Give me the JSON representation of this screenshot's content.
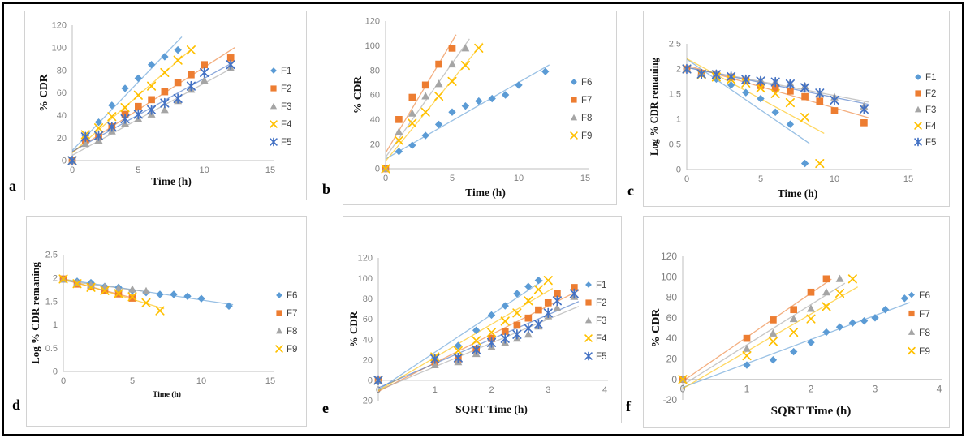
{
  "panels": [
    {
      "letter": "a"
    },
    {
      "letter": "b"
    },
    {
      "letter": "c"
    },
    {
      "letter": "d"
    },
    {
      "letter": "e"
    },
    {
      "letter": "f"
    }
  ],
  "style": {
    "axis_color": "#BFBFBF",
    "tick_label_color": "#7F7F7F",
    "axis_title_color": "#111111",
    "legend_text_color": "#404040",
    "panel_border_color": "#d2d2d2",
    "figure_border_color": "#000000",
    "series_palette": {
      "F1": "#5B9BD5",
      "F2": "#ED7D31",
      "F3": "#A5A5A5",
      "F4": "#FFC000",
      "F5": "#4472C4",
      "F6": "#5B9BD5",
      "F7": "#ED7D31",
      "F8": "#A5A5A5",
      "F9": "#FFC000"
    }
  },
  "chart_data": [
    {
      "panel": "a",
      "type": "scatter",
      "xlabel": "Time (h)",
      "ylabel": "% CDR",
      "xlim": [
        0,
        15
      ],
      "xticks": [
        0,
        5,
        10,
        15
      ],
      "ylim": [
        0,
        120
      ],
      "yticks": [
        0,
        20,
        40,
        60,
        80,
        100,
        120
      ],
      "grid": false,
      "legend_position": "right",
      "series": [
        {
          "name": "F1",
          "color": "#5B9BD5",
          "marker": "diamond",
          "trendline": true,
          "x": [
            0,
            1,
            2,
            3,
            4,
            5,
            6,
            7,
            8
          ],
          "y": [
            0,
            22,
            34,
            49,
            64,
            73,
            85,
            92,
            98
          ]
        },
        {
          "name": "F2",
          "color": "#ED7D31",
          "marker": "square",
          "trendline": true,
          "x": [
            0,
            1,
            2,
            3,
            4,
            5,
            6,
            7,
            8,
            9,
            10,
            12
          ],
          "y": [
            0,
            18,
            21,
            30,
            41,
            48,
            54,
            61,
            69,
            76,
            85,
            91
          ]
        },
        {
          "name": "F3",
          "color": "#A5A5A5",
          "marker": "triangle",
          "trendline": true,
          "x": [
            0,
            1,
            2,
            3,
            4,
            5,
            6,
            7,
            8,
            9,
            10,
            12
          ],
          "y": [
            0,
            15,
            18,
            26,
            33,
            37,
            41,
            45,
            53,
            63,
            71,
            82
          ]
        },
        {
          "name": "F4",
          "color": "#FFC000",
          "marker": "x",
          "trendline": true,
          "x": [
            0,
            1,
            2,
            3,
            4,
            5,
            6,
            7,
            8,
            9
          ],
          "y": [
            0,
            23,
            29,
            39,
            47,
            58,
            66,
            78,
            89,
            98
          ]
        },
        {
          "name": "F5",
          "color": "#4472C4",
          "marker": "asterisk",
          "trendline": true,
          "x": [
            0,
            1,
            2,
            3,
            4,
            5,
            6,
            7,
            8,
            9,
            10,
            12
          ],
          "y": [
            0,
            21,
            22,
            30,
            37,
            41,
            45,
            51,
            55,
            66,
            78,
            85
          ]
        }
      ]
    },
    {
      "panel": "b",
      "type": "scatter",
      "xlabel": "Time (h)",
      "ylabel": "% CDR",
      "xlim": [
        0,
        15
      ],
      "xticks": [
        0,
        5,
        10,
        15
      ],
      "ylim": [
        0,
        120
      ],
      "yticks": [
        0,
        20,
        40,
        60,
        80,
        100,
        120
      ],
      "grid": false,
      "legend_position": "right",
      "series": [
        {
          "name": "F6",
          "color": "#5B9BD5",
          "marker": "diamond",
          "trendline": true,
          "x": [
            0,
            1,
            2,
            3,
            4,
            5,
            6,
            7,
            8,
            9,
            10,
            12
          ],
          "y": [
            0,
            14,
            19,
            27,
            36,
            46,
            51,
            55,
            57,
            60,
            68,
            79
          ]
        },
        {
          "name": "F7",
          "color": "#ED7D31",
          "marker": "square",
          "trendline": true,
          "x": [
            0,
            1,
            2,
            3,
            4,
            5
          ],
          "y": [
            0,
            40,
            58,
            68,
            85,
            98
          ]
        },
        {
          "name": "F8",
          "color": "#A5A5A5",
          "marker": "triangle",
          "trendline": true,
          "x": [
            0,
            1,
            2,
            3,
            4,
            5,
            6
          ],
          "y": [
            0,
            30,
            45,
            59,
            69,
            85,
            98
          ]
        },
        {
          "name": "F9",
          "color": "#FFC000",
          "marker": "x",
          "trendline": true,
          "x": [
            0,
            1,
            2,
            3,
            4,
            5,
            6,
            7
          ],
          "y": [
            0,
            23,
            37,
            46,
            59,
            71,
            84,
            98
          ]
        }
      ]
    },
    {
      "panel": "c",
      "type": "scatter",
      "xlabel": "Time (h)",
      "ylabel": "Log % CDR remaning",
      "xlim": [
        0,
        15
      ],
      "xticks": [
        0,
        5,
        10,
        15
      ],
      "ylim": [
        0,
        2.5
      ],
      "yticks": [
        0,
        0.5,
        1,
        1.5,
        2,
        2.5
      ],
      "grid": false,
      "legend_position": "right",
      "series": [
        {
          "name": "F1",
          "color": "#5B9BD5",
          "marker": "diamond",
          "trendline": true,
          "x": [
            0,
            1,
            2,
            3,
            4,
            5,
            6,
            7,
            8
          ],
          "y": [
            2,
            1.9,
            1.8,
            1.68,
            1.53,
            1.41,
            1.14,
            0.9,
            0.12
          ]
        },
        {
          "name": "F2",
          "color": "#ED7D31",
          "marker": "square",
          "trendline": true,
          "x": [
            0,
            1,
            2,
            3,
            4,
            5,
            6,
            7,
            8,
            9,
            10,
            12
          ],
          "y": [
            2,
            1.91,
            1.9,
            1.84,
            1.77,
            1.67,
            1.62,
            1.56,
            1.45,
            1.36,
            1.17,
            0.93
          ]
        },
        {
          "name": "F3",
          "color": "#A5A5A5",
          "marker": "triangle",
          "trendline": true,
          "x": [
            0,
            1,
            2,
            3,
            4,
            5,
            6,
            7,
            8,
            9,
            10,
            12
          ],
          "y": [
            2,
            1.92,
            1.91,
            1.86,
            1.81,
            1.78,
            1.75,
            1.72,
            1.66,
            1.52,
            1.44,
            1.26
          ]
        },
        {
          "name": "F4",
          "color": "#FFC000",
          "marker": "x",
          "trendline": true,
          "x": [
            0,
            1,
            2,
            3,
            4,
            5,
            6,
            7,
            8,
            9
          ],
          "y": [
            2,
            1.89,
            1.84,
            1.79,
            1.72,
            1.62,
            1.51,
            1.33,
            1.04,
            0.12
          ]
        },
        {
          "name": "F5",
          "color": "#4472C4",
          "marker": "asterisk",
          "trendline": true,
          "x": [
            0,
            1,
            2,
            3,
            4,
            5,
            6,
            7,
            8,
            9,
            10,
            12
          ],
          "y": [
            2,
            1.9,
            1.89,
            1.85,
            1.79,
            1.76,
            1.74,
            1.7,
            1.63,
            1.52,
            1.38,
            1.2
          ]
        }
      ]
    },
    {
      "panel": "d",
      "type": "scatter",
      "xlabel": "Time (h)",
      "ylabel": "Log % CDR remaning",
      "xlim": [
        0,
        15
      ],
      "xticks": [
        0,
        5,
        10,
        15
      ],
      "ylim": [
        0,
        2.5
      ],
      "yticks": [
        0,
        0.5,
        1,
        1.5,
        2,
        2.5
      ],
      "grid": false,
      "legend_position": "right",
      "series": [
        {
          "name": "F6",
          "color": "#5B9BD5",
          "marker": "diamond",
          "trendline": true,
          "x": [
            0,
            1,
            2,
            3,
            4,
            5,
            6,
            7,
            8,
            9,
            10,
            12
          ],
          "y": [
            1.98,
            1.93,
            1.9,
            1.82,
            1.8,
            1.73,
            1.69,
            1.65,
            1.65,
            1.61,
            1.56,
            1.4
          ]
        },
        {
          "name": "F7",
          "color": "#ED7D31",
          "marker": "square",
          "trendline": true,
          "x": [
            0,
            1,
            2,
            3,
            4,
            5
          ],
          "y": [
            1.98,
            1.87,
            1.81,
            1.74,
            1.66,
            1.57
          ]
        },
        {
          "name": "F8",
          "color": "#A5A5A5",
          "marker": "triangle",
          "trendline": true,
          "x": [
            0,
            1,
            2,
            3,
            4,
            5,
            6
          ],
          "y": [
            1.97,
            1.9,
            1.85,
            1.81,
            1.78,
            1.76,
            1.72
          ]
        },
        {
          "name": "F9",
          "color": "#FFC000",
          "marker": "x",
          "trendline": true,
          "x": [
            0,
            1,
            2,
            3,
            4,
            5,
            6,
            7
          ],
          "y": [
            1.98,
            1.88,
            1.8,
            1.73,
            1.67,
            1.6,
            1.47,
            1.3
          ]
        }
      ]
    },
    {
      "panel": "e",
      "type": "scatter",
      "xlabel": "SQRT Time (h)",
      "ylabel": "% CDR",
      "xlim": [
        0,
        4
      ],
      "xticks": [
        0,
        1,
        2,
        3,
        4
      ],
      "ylim": [
        -20,
        120
      ],
      "yticks": [
        -20,
        0,
        20,
        40,
        60,
        80,
        100,
        120
      ],
      "x_axis_y": 0,
      "grid": false,
      "legend_position": "right",
      "series": [
        {
          "name": "F1",
          "color": "#5B9BD5",
          "marker": "diamond",
          "trendline": true,
          "x": [
            0,
            1,
            1.41,
            1.73,
            2,
            2.24,
            2.45,
            2.65,
            2.83
          ],
          "y": [
            0,
            22,
            34,
            49,
            64,
            73,
            85,
            92,
            98
          ]
        },
        {
          "name": "F2",
          "color": "#ED7D31",
          "marker": "square",
          "trendline": true,
          "x": [
            0,
            1,
            1.41,
            1.73,
            2,
            2.24,
            2.45,
            2.65,
            2.83,
            3,
            3.16,
            3.46
          ],
          "y": [
            0,
            18,
            21,
            30,
            41,
            48,
            54,
            61,
            69,
            76,
            85,
            91
          ]
        },
        {
          "name": "F3",
          "color": "#A5A5A5",
          "marker": "triangle",
          "trendline": true,
          "x": [
            0,
            1,
            1.41,
            1.73,
            2,
            2.24,
            2.45,
            2.65,
            2.83,
            3,
            3.16,
            3.46
          ],
          "y": [
            0,
            15,
            18,
            26,
            33,
            37,
            41,
            45,
            53,
            63,
            71,
            82
          ]
        },
        {
          "name": "F4",
          "color": "#FFC000",
          "marker": "x",
          "trendline": true,
          "x": [
            0,
            1,
            1.41,
            1.73,
            2,
            2.24,
            2.45,
            2.65,
            2.83,
            3
          ],
          "y": [
            0,
            23,
            29,
            39,
            47,
            58,
            66,
            78,
            89,
            98
          ]
        },
        {
          "name": "F5",
          "color": "#4472C4",
          "marker": "asterisk",
          "trendline": true,
          "x": [
            0,
            1,
            1.41,
            1.73,
            2,
            2.24,
            2.45,
            2.65,
            2.83,
            3,
            3.16,
            3.46
          ],
          "y": [
            0,
            21,
            22,
            30,
            37,
            41,
            45,
            51,
            55,
            66,
            78,
            85
          ]
        }
      ]
    },
    {
      "panel": "f",
      "type": "scatter",
      "xlabel": "SQRT Time (h)",
      "ylabel": "% CDR",
      "xlim": [
        0,
        4
      ],
      "xticks": [
        0,
        1,
        2,
        3,
        4
      ],
      "ylim": [
        -20,
        120
      ],
      "yticks": [
        -20,
        0,
        20,
        40,
        60,
        80,
        100,
        120
      ],
      "x_axis_y": 0,
      "grid": false,
      "legend_position": "right",
      "series": [
        {
          "name": "F6",
          "color": "#5B9BD5",
          "marker": "diamond",
          "trendline": true,
          "x": [
            0,
            1,
            1.41,
            1.73,
            2,
            2.24,
            2.45,
            2.65,
            2.83,
            3,
            3.16,
            3.46
          ],
          "y": [
            0,
            14,
            19,
            27,
            36,
            46,
            51,
            55,
            57,
            60,
            68,
            79
          ]
        },
        {
          "name": "F7",
          "color": "#ED7D31",
          "marker": "square",
          "trendline": true,
          "x": [
            0,
            1,
            1.41,
            1.73,
            2,
            2.24
          ],
          "y": [
            0,
            40,
            58,
            68,
            85,
            98
          ]
        },
        {
          "name": "F8",
          "color": "#A5A5A5",
          "marker": "triangle",
          "trendline": true,
          "x": [
            0,
            1,
            1.41,
            1.73,
            2,
            2.24,
            2.45
          ],
          "y": [
            0,
            30,
            45,
            59,
            69,
            85,
            98
          ]
        },
        {
          "name": "F9",
          "color": "#FFC000",
          "marker": "x",
          "trendline": true,
          "x": [
            0,
            1,
            1.41,
            1.73,
            2,
            2.24,
            2.45,
            2.65
          ],
          "y": [
            0,
            23,
            37,
            46,
            59,
            71,
            84,
            98
          ]
        }
      ]
    }
  ]
}
